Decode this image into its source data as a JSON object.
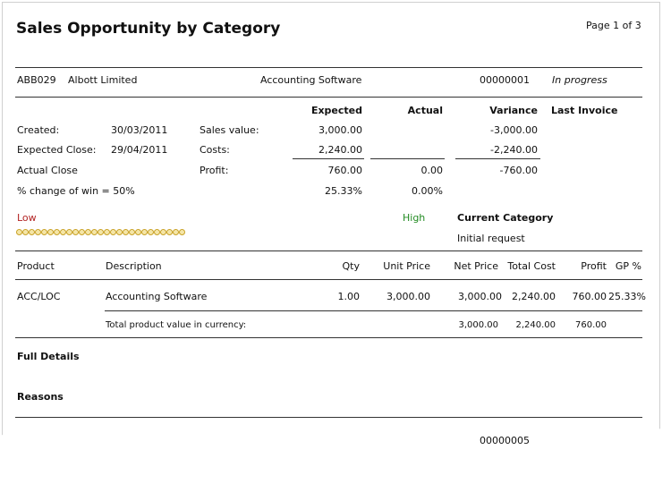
{
  "report": {
    "title": "Sales Opportunity by Category",
    "page": "Page 1 of 3"
  },
  "account": {
    "code": "ABB029",
    "name": "Albott Limited",
    "category": "Accounting Software",
    "number": "00000001",
    "status": "In progress"
  },
  "summary_headers": {
    "expected": "Expected",
    "actual": "Actual",
    "variance": "Variance",
    "last_invoice": "Last Invoice"
  },
  "dates": {
    "created_label": "Created:",
    "created_value": "30/03/2011",
    "expected_close_label": "Expected Close:",
    "expected_close_value": "29/04/2011",
    "actual_close_label": "Actual Close",
    "win_change": "% change of win = 50%"
  },
  "figures": {
    "sales_value_label": "Sales value:",
    "sales_expected": "3,000.00",
    "sales_variance": "-3,000.00",
    "costs_label": "Costs:",
    "costs_expected": "2,240.00",
    "costs_variance": "-2,240.00",
    "profit_label": "Profit:",
    "profit_expected": "760.00",
    "profit_actual": "0.00",
    "profit_variance": "-760.00",
    "pct_expected": "25.33%",
    "pct_actual": "0.00%"
  },
  "gauge": {
    "low_label": "Low",
    "high_label": "High",
    "low_color": "#b22222",
    "high_color": "#228b22",
    "current_category_label": "Current Category",
    "current_category_value": "Initial request"
  },
  "products": {
    "headers": {
      "product": "Product",
      "description": "Description",
      "qty": "Qty",
      "unit_price": "Unit Price",
      "net_price": "Net Price",
      "total_cost": "Total Cost",
      "profit": "Profit",
      "gp": "GP %"
    },
    "rows": [
      {
        "product": "ACC/LOC",
        "description": "Accounting Software",
        "qty": "1.00",
        "unit_price": "3,000.00",
        "net_price": "3,000.00",
        "total_cost": "2,240.00",
        "profit": "760.00",
        "gp": "25.33%"
      }
    ],
    "total_label": "Total product value in currency:",
    "total_net": "3,000.00",
    "total_cost": "2,240.00",
    "total_profit": "760.00"
  },
  "sections": {
    "full_details": "Full Details",
    "reasons": "Reasons"
  },
  "fragment": {
    "number": "00000005"
  }
}
